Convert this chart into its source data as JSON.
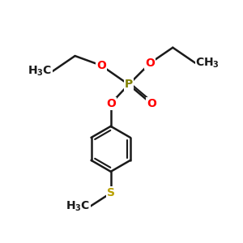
{
  "bond_color": "#1a1a1a",
  "bond_width": 1.8,
  "atom_colors": {
    "O": "#ff0000",
    "P": "#808000",
    "S": "#b8a000",
    "C": "#1a1a1a"
  },
  "font_size_atom": 10,
  "figsize": [
    3.0,
    3.0
  ],
  "xlim": [
    0,
    10
  ],
  "ylim": [
    0,
    10
  ]
}
